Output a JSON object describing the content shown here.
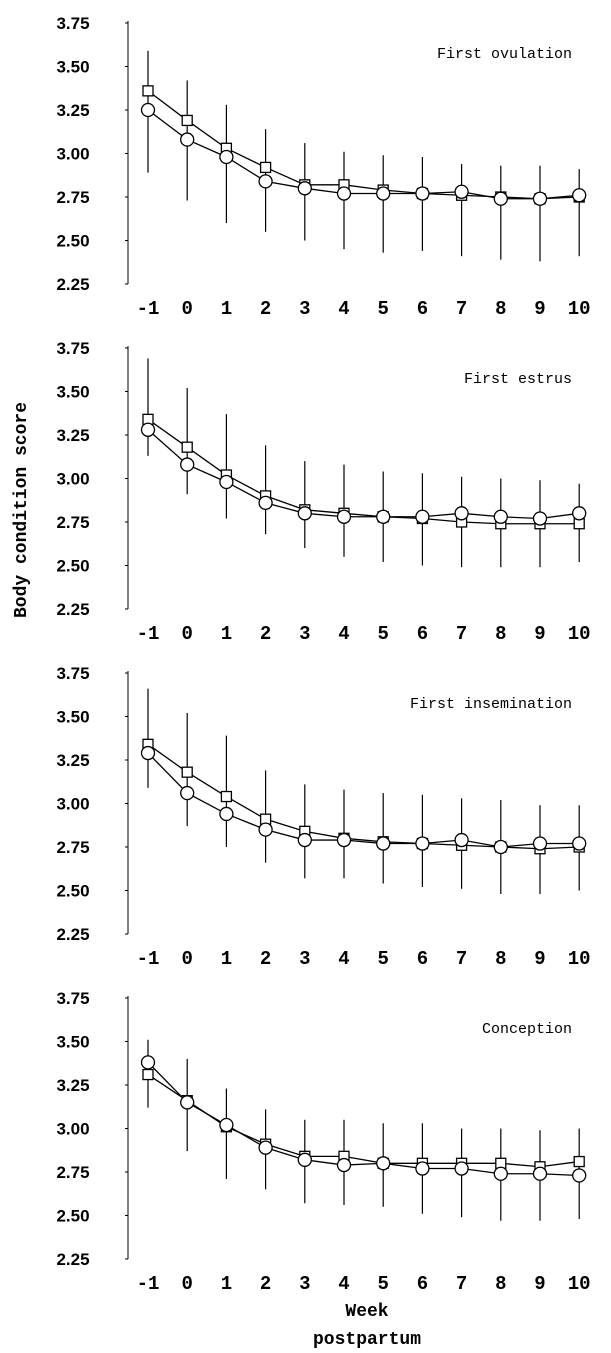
{
  "figure": {
    "ylabel": "Body condition score",
    "xlabel_line1": "Week",
    "xlabel_line2": "postpartum"
  },
  "chart_data": [
    {
      "type": "line",
      "title": "First ovulation",
      "x": [
        -1,
        0,
        1,
        2,
        3,
        4,
        5,
        6,
        7,
        8,
        9,
        10
      ],
      "ylim": [
        2.25,
        3.75
      ],
      "yticks": [
        "3.75",
        "3.50",
        "3.25",
        "3.00",
        "2.75",
        "2.50",
        "2.25"
      ],
      "series": [
        {
          "marker": "square",
          "values": [
            3.36,
            3.19,
            3.03,
            2.92,
            2.82,
            2.82,
            2.79,
            2.77,
            2.76,
            2.75,
            2.74,
            2.75
          ]
        },
        {
          "marker": "circle",
          "values": [
            3.25,
            3.08,
            2.98,
            2.84,
            2.8,
            2.77,
            2.77,
            2.77,
            2.78,
            2.74,
            2.74,
            2.76
          ]
        }
      ],
      "error_bars": [
        [
          2.89,
          3.59
        ],
        [
          2.73,
          3.42
        ],
        [
          2.6,
          3.28
        ],
        [
          2.55,
          3.14
        ],
        [
          2.5,
          3.06
        ],
        [
          2.45,
          3.01
        ],
        [
          2.43,
          2.99
        ],
        [
          2.44,
          2.98
        ],
        [
          2.41,
          2.94
        ],
        [
          2.39,
          2.93
        ],
        [
          2.38,
          2.93
        ],
        [
          2.41,
          2.91
        ]
      ]
    },
    {
      "type": "line",
      "title": "First estrus",
      "x": [
        -1,
        0,
        1,
        2,
        3,
        4,
        5,
        6,
        7,
        8,
        9,
        10
      ],
      "ylim": [
        2.25,
        3.75
      ],
      "yticks": [
        "3.75",
        "3.50",
        "3.25",
        "3.00",
        "2.75",
        "2.50",
        "2.25"
      ],
      "series": [
        {
          "marker": "square",
          "values": [
            3.34,
            3.18,
            3.02,
            2.9,
            2.82,
            2.8,
            2.78,
            2.77,
            2.75,
            2.74,
            2.74,
            2.74
          ]
        },
        {
          "marker": "circle",
          "values": [
            3.28,
            3.08,
            2.98,
            2.86,
            2.8,
            2.78,
            2.78,
            2.78,
            2.8,
            2.78,
            2.77,
            2.8
          ]
        }
      ],
      "error_bars": [
        [
          3.13,
          3.69
        ],
        [
          2.91,
          3.52
        ],
        [
          2.77,
          3.37
        ],
        [
          2.68,
          3.19
        ],
        [
          2.6,
          3.1
        ],
        [
          2.55,
          3.08
        ],
        [
          2.52,
          3.04
        ],
        [
          2.5,
          3.03
        ],
        [
          2.49,
          3.01
        ],
        [
          2.49,
          3.0
        ],
        [
          2.49,
          2.99
        ],
        [
          2.52,
          2.97
        ]
      ]
    },
    {
      "type": "line",
      "title": "First insemination",
      "x": [
        -1,
        0,
        1,
        2,
        3,
        4,
        5,
        6,
        7,
        8,
        9,
        10
      ],
      "ylim": [
        2.25,
        3.75
      ],
      "yticks": [
        "3.75",
        "3.50",
        "3.25",
        "3.00",
        "2.75",
        "2.50",
        "2.25"
      ],
      "series": [
        {
          "marker": "square",
          "values": [
            3.34,
            3.18,
            3.04,
            2.91,
            2.84,
            2.8,
            2.78,
            2.77,
            2.76,
            2.75,
            2.74,
            2.75
          ]
        },
        {
          "marker": "circle",
          "values": [
            3.29,
            3.06,
            2.94,
            2.85,
            2.79,
            2.79,
            2.77,
            2.77,
            2.79,
            2.75,
            2.77,
            2.77
          ]
        }
      ],
      "error_bars": [
        [
          3.09,
          3.66
        ],
        [
          2.87,
          3.52
        ],
        [
          2.75,
          3.39
        ],
        [
          2.66,
          3.19
        ],
        [
          2.57,
          3.11
        ],
        [
          2.57,
          3.08
        ],
        [
          2.54,
          3.06
        ],
        [
          2.52,
          3.05
        ],
        [
          2.51,
          3.03
        ],
        [
          2.48,
          3.02
        ],
        [
          2.48,
          2.99
        ],
        [
          2.5,
          2.99
        ]
      ]
    },
    {
      "type": "line",
      "title": "Conception",
      "x": [
        -1,
        0,
        1,
        2,
        3,
        4,
        5,
        6,
        7,
        8,
        9,
        10
      ],
      "ylim": [
        2.25,
        3.75
      ],
      "yticks": [
        "3.75",
        "3.50",
        "3.25",
        "3.00",
        "2.75",
        "2.50",
        "2.25"
      ],
      "series": [
        {
          "marker": "square",
          "values": [
            3.31,
            3.16,
            3.01,
            2.91,
            2.84,
            2.84,
            2.8,
            2.8,
            2.8,
            2.8,
            2.78,
            2.81
          ]
        },
        {
          "marker": "circle",
          "values": [
            3.38,
            3.15,
            3.02,
            2.89,
            2.82,
            2.79,
            2.8,
            2.77,
            2.77,
            2.74,
            2.74,
            2.73
          ]
        }
      ],
      "error_bars": [
        [
          3.12,
          3.51
        ],
        [
          2.87,
          3.4
        ],
        [
          2.71,
          3.23
        ],
        [
          2.65,
          3.11
        ],
        [
          2.57,
          3.05
        ],
        [
          2.56,
          3.05
        ],
        [
          2.55,
          3.03
        ],
        [
          2.51,
          3.03
        ],
        [
          2.49,
          3.0
        ],
        [
          2.47,
          3.0
        ],
        [
          2.47,
          2.99
        ],
        [
          2.48,
          3.0
        ]
      ]
    }
  ]
}
